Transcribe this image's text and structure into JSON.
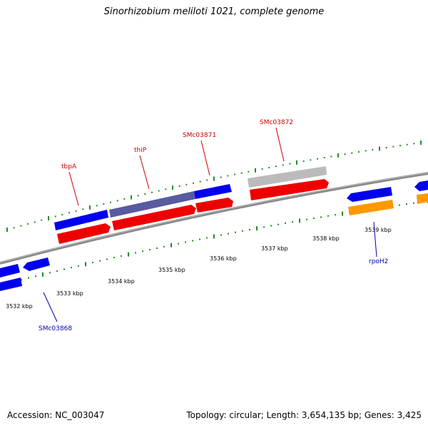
{
  "title": "Sinorhizobium meliloti 1021, complete genome",
  "accession": "Accession: NC_003047",
  "summary": "Topology: circular; Length: 3,654,135 bp; Genes: 3,425",
  "colors": {
    "forward_gene": "#0000ee",
    "reverse_gene": "#ee0000",
    "highlight_gene": "#5a5aa0",
    "pseudo_gene": "#bbbbbb",
    "rna_gene": "#ff9900",
    "backbone": "#888888",
    "tick": "#2a8a2a",
    "forward_label": "#cc0000",
    "reverse_label": "#0000aa"
  },
  "ticks": [
    "3532 kbp",
    "3533 kbp",
    "3534 kbp",
    "3535 kbp",
    "3536 kbp",
    "3537 kbp",
    "3538 kbp",
    "3539 kbp"
  ],
  "gene_labels": [
    {
      "name": "tbpA",
      "strand": "forward"
    },
    {
      "name": "thiP",
      "strand": "forward"
    },
    {
      "name": "SMc03871",
      "strand": "forward"
    },
    {
      "name": "SMc03872",
      "strand": "forward"
    },
    {
      "name": "SMc03868",
      "strand": "reverse"
    },
    {
      "name": "rpoH2",
      "strand": "reverse"
    }
  ]
}
